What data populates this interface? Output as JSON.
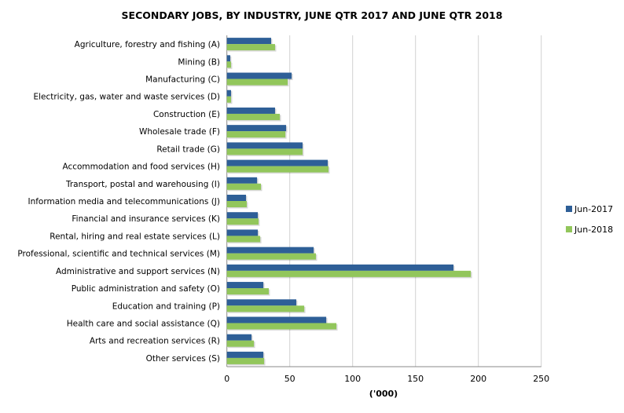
{
  "chart_data": {
    "type": "bar",
    "orientation": "horizontal",
    "title": "SECONDARY JOBS, BY INDUSTRY, JUNE QTR 2017 AND JUNE QTR 2018",
    "xlabel": "('000)",
    "ylabel": "",
    "xlim": [
      0,
      250
    ],
    "xticks": [
      0,
      50,
      100,
      150,
      200,
      250
    ],
    "grid": true,
    "legend_position": "right",
    "categories": [
      "Agriculture, forestry and fishing (A)",
      "Mining (B)",
      "Manufacturing (C)",
      "Electricity, gas, water and waste services (D)",
      "Construction (E)",
      "Wholesale trade (F)",
      "Retail trade (G)",
      "Accommodation and food services (H)",
      "Transport, postal and warehousing (I)",
      "Information media and telecommunications (J)",
      "Financial and insurance services (K)",
      "Rental, hiring and real estate services (L)",
      "Professional, scientific and technical services (M)",
      "Administrative and support services (N)",
      "Public administration and safety (O)",
      "Education and training (P)",
      "Health care and social assistance (Q)",
      "Arts and recreation services (R)",
      "Other services (S)"
    ],
    "series": [
      {
        "name": "Jun-2017",
        "color": "#2E5F97",
        "values": [
          35.2,
          2.7,
          51.5,
          3.3,
          38.3,
          47.1,
          60.2,
          80.2,
          24.0,
          15.2,
          24.6,
          24.6,
          69.0,
          180.2,
          29.0,
          55.2,
          79.0,
          19.6,
          29.0
        ]
      },
      {
        "name": "Jun-2018",
        "color": "#92C65B",
        "values": [
          38.3,
          3.3,
          48.3,
          3.3,
          42.1,
          46.5,
          60.2,
          80.8,
          27.1,
          15.8,
          25.2,
          26.5,
          70.8,
          194.0,
          33.3,
          61.5,
          87.1,
          21.5,
          29.6
        ]
      }
    ]
  }
}
